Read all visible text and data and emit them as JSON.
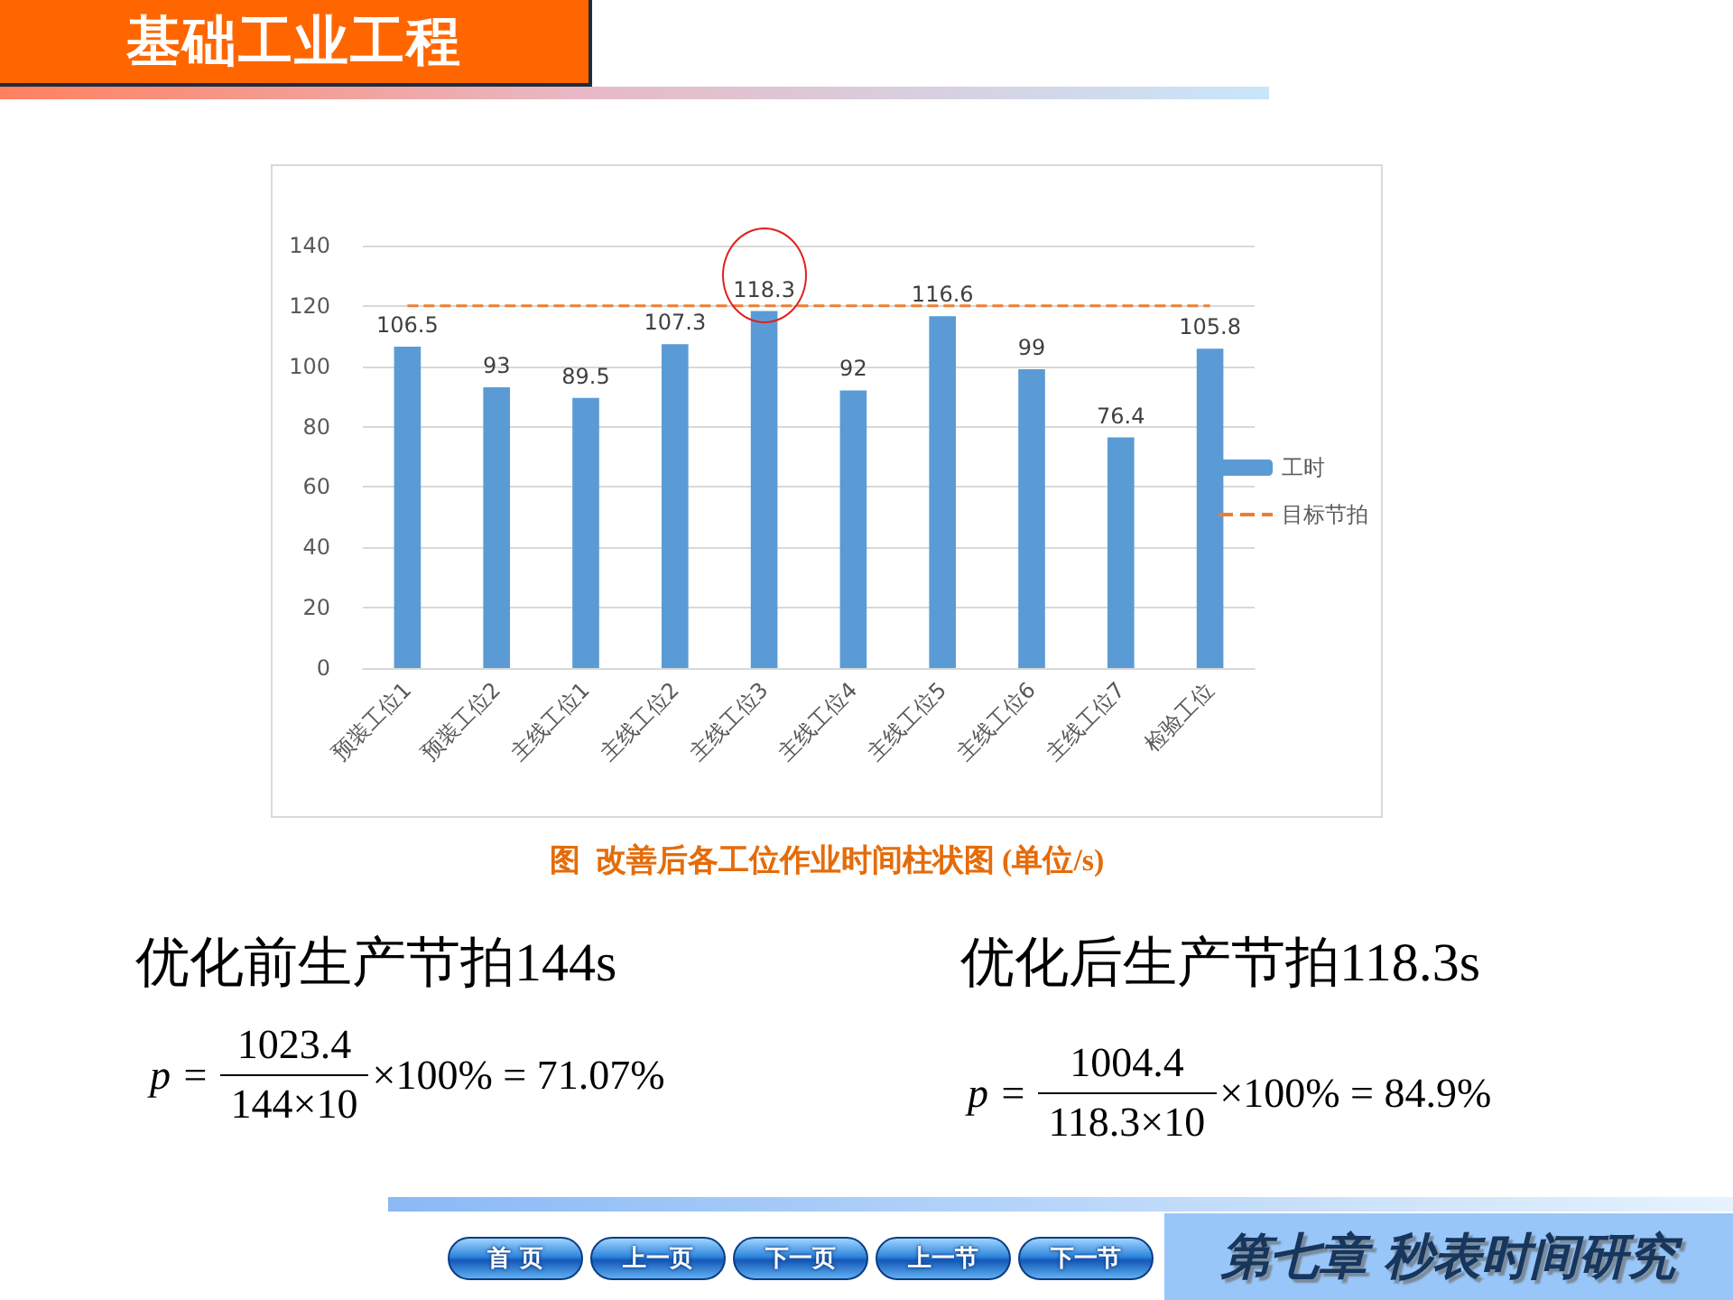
{
  "chart_data": {
    "type": "bar",
    "title": "基础工业工程",
    "categories": [
      "预装工位1",
      "预装工位2",
      "主线工位1",
      "主线工位2",
      "主线工位3",
      "主线工位4",
      "主线工位5",
      "主线工位6",
      "主线工位7",
      "检验工位"
    ],
    "series": [
      {
        "name": "工时",
        "color": "#5b9bd5",
        "values": [
          106.5,
          93,
          89.5,
          107.3,
          118.3,
          92,
          116.6,
          99,
          76.4,
          105.8
        ]
      }
    ],
    "ylim": [
      0,
      140
    ],
    "yticks": [
      0,
      20,
      40,
      60,
      80,
      100,
      120,
      140
    ],
    "grid": "y",
    "legend": "right",
    "data_labels": true,
    "ref_lines": [
      {
        "axis": "y",
        "value": 120,
        "label": "目标节拍",
        "color": "#ed7d31",
        "line_style": "dashed"
      }
    ],
    "annotations": [
      "图  改善后各工位作业时间柱状图 (单位/s)",
      "优化前生产节拍144s",
      "p =",
      "1023.4",
      "144×10",
      "×100% = 71.07%",
      "优化后生产节拍118.3s",
      "p =",
      "1004.4",
      "118.3×10",
      "×100% = 84.9%",
      "首 页",
      "上一页",
      "下一页",
      "上一节",
      "下一节",
      "第七章 秒表时间研究"
    ]
  }
}
